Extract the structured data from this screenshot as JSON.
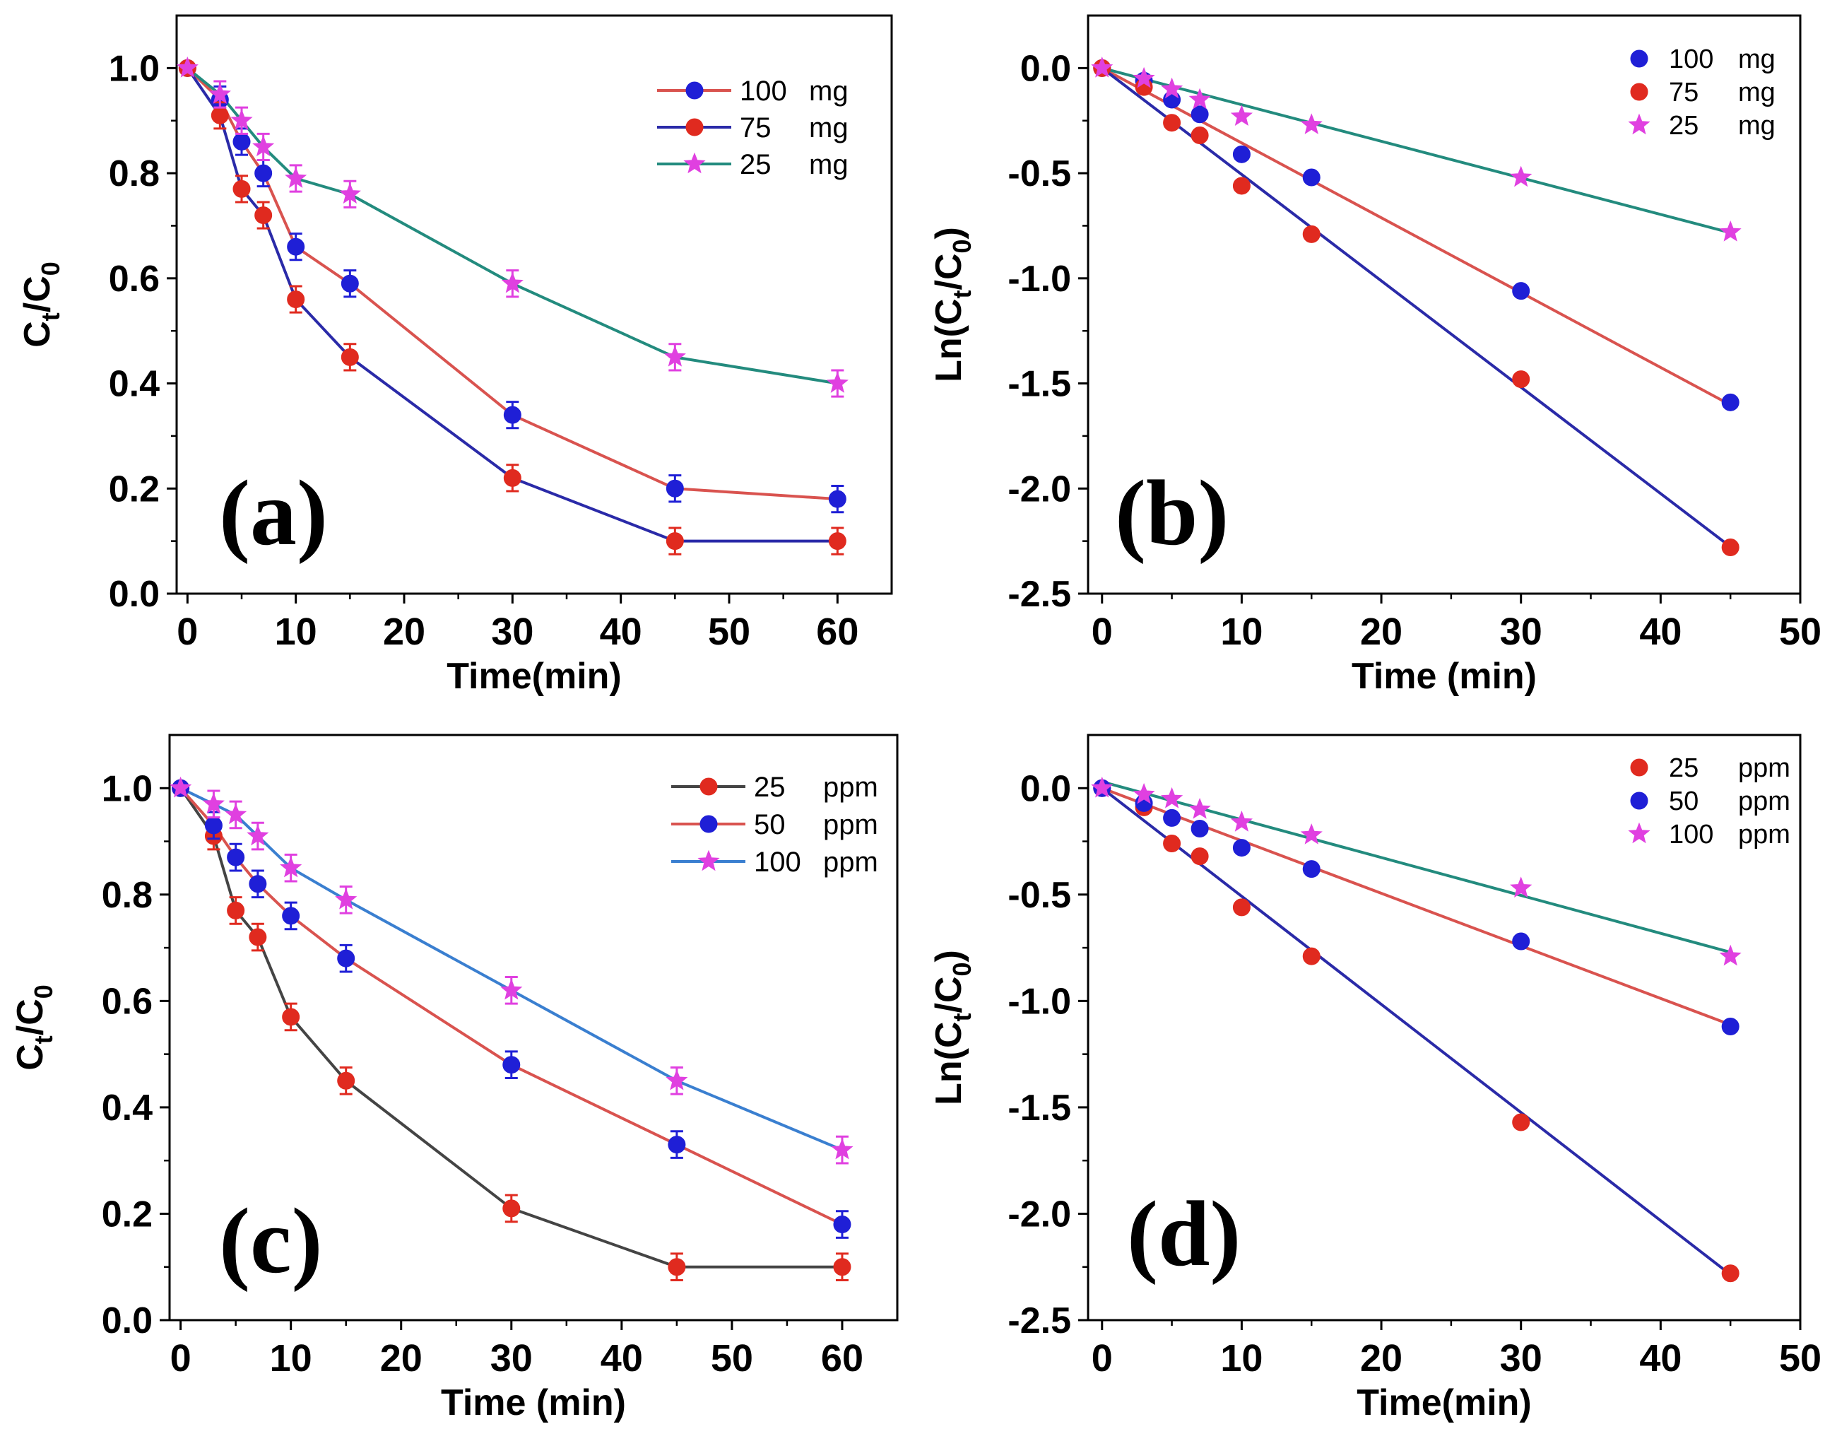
{
  "chart_data": [
    {
      "panel": "(a)",
      "type": "line",
      "xlabel": "Time(min)",
      "ylabel": "Ct/C0",
      "ylabel_main": "C",
      "ylabel_sub1": "t",
      "ylabel_mid": "/C",
      "ylabel_sub2": "0",
      "xlim": [
        -1,
        65
      ],
      "ylim": [
        0,
        1.1
      ],
      "xticks": [
        0,
        10,
        20,
        30,
        40,
        50,
        60
      ],
      "yticks": [
        0.0,
        0.2,
        0.4,
        0.6,
        0.8,
        1.0
      ],
      "ytick_labels": [
        "0.0",
        "0.2",
        "0.4",
        "0.6",
        "0.8",
        "1.0"
      ],
      "x": [
        0,
        3,
        5,
        7,
        10,
        15,
        30,
        45,
        60
      ],
      "legend": {
        "position": "top-right",
        "type": "line"
      },
      "series": [
        {
          "name": "100",
          "unit": "mg",
          "values": [
            1.0,
            0.94,
            0.86,
            0.8,
            0.66,
            0.59,
            0.34,
            0.2,
            0.18
          ],
          "line_color": "#d9534f",
          "marker_color": "#1f1fd6",
          "marker": "circle",
          "err": 0.025
        },
        {
          "name": "75",
          "unit": "mg",
          "values": [
            1.0,
            0.91,
            0.77,
            0.72,
            0.56,
            0.45,
            0.22,
            0.1,
            0.1
          ],
          "line_color": "#2a2aa8",
          "marker_color": "#e02a1f",
          "marker": "circle",
          "err": 0.025
        },
        {
          "name": "25",
          "unit": "mg",
          "values": [
            1.0,
            0.95,
            0.9,
            0.85,
            0.79,
            0.76,
            0.59,
            0.45,
            0.4
          ],
          "line_color": "#238b7e",
          "marker_color": "#e040e0",
          "marker": "star",
          "err": 0.025
        }
      ]
    },
    {
      "panel": "(b)",
      "type": "scatter",
      "xlabel": "Time (min)",
      "ylabel": "Ln(Ct/C0)",
      "ylabel_main": "Ln(C",
      "ylabel_sub1": "t",
      "ylabel_mid": "/C",
      "ylabel_sub2": "0",
      "ylabel_end": ")",
      "xlim": [
        -1,
        50
      ],
      "ylim": [
        -2.5,
        0.25
      ],
      "xticks": [
        0,
        10,
        20,
        30,
        40,
        50
      ],
      "yticks": [
        0.0,
        -0.5,
        -1.0,
        -1.5,
        -2.0,
        -2.5
      ],
      "ytick_labels": [
        "0.0",
        "-0.5",
        "-1.0",
        "-1.5",
        "-2.0",
        "-2.5"
      ],
      "x": [
        0,
        3,
        5,
        7,
        10,
        15,
        30,
        45
      ],
      "legend": {
        "position": "top-right",
        "type": "marker"
      },
      "series": [
        {
          "name": "100",
          "unit": "mg",
          "values": [
            0,
            -0.06,
            -0.15,
            -0.22,
            -0.41,
            -0.52,
            -1.06,
            -1.59
          ],
          "fit": [
            0,
            -0.0356
          ],
          "line_color": "#d9534f",
          "marker_color": "#1f1fd6",
          "marker": "circle"
        },
        {
          "name": "75",
          "unit": "mg",
          "values": [
            0,
            -0.09,
            -0.26,
            -0.32,
            -0.56,
            -0.79,
            -1.48,
            -2.28
          ],
          "fit": [
            0,
            -0.0506
          ],
          "line_color": "#2a2aa8",
          "marker_color": "#e02a1f",
          "marker": "circle"
        },
        {
          "name": "25",
          "unit": "mg",
          "values": [
            0,
            -0.05,
            -0.1,
            -0.15,
            -0.23,
            -0.27,
            -0.52,
            -0.78
          ],
          "fit": [
            0,
            -0.0174
          ],
          "line_color": "#238b7e",
          "marker_color": "#e040e0",
          "marker": "star"
        }
      ]
    },
    {
      "panel": "(c)",
      "type": "line",
      "xlabel": "Time (min)",
      "ylabel": "Ct/C0",
      "ylabel_main": "C",
      "ylabel_sub1": "t",
      "ylabel_mid": "/C",
      "ylabel_sub2": "0",
      "xlim": [
        -1,
        65
      ],
      "ylim": [
        0,
        1.1
      ],
      "xticks": [
        0,
        10,
        20,
        30,
        40,
        50,
        60
      ],
      "yticks": [
        0.0,
        0.2,
        0.4,
        0.6,
        0.8,
        1.0
      ],
      "ytick_labels": [
        "0.0",
        "0.2",
        "0.4",
        "0.6",
        "0.8",
        "1.0"
      ],
      "x": [
        0,
        3,
        5,
        7,
        10,
        15,
        30,
        45,
        60
      ],
      "legend": {
        "position": "top-right",
        "type": "line"
      },
      "series": [
        {
          "name": "25",
          "unit": "ppm",
          "values": [
            1.0,
            0.91,
            0.77,
            0.72,
            0.57,
            0.45,
            0.21,
            0.1,
            0.1
          ],
          "line_color": "#444444",
          "marker_color": "#e02a1f",
          "marker": "circle",
          "err": 0.025
        },
        {
          "name": "50",
          "unit": "ppm",
          "values": [
            1.0,
            0.93,
            0.87,
            0.82,
            0.76,
            0.68,
            0.48,
            0.33,
            0.18
          ],
          "line_color": "#d9534f",
          "marker_color": "#1f1fd6",
          "marker": "circle",
          "err": 0.025
        },
        {
          "name": "100",
          "unit": "ppm",
          "values": [
            1.0,
            0.97,
            0.95,
            0.91,
            0.85,
            0.79,
            0.62,
            0.45,
            0.32
          ],
          "line_color": "#3a7fd0",
          "marker_color": "#e040e0",
          "marker": "star",
          "err": 0.025
        }
      ]
    },
    {
      "panel": "(d)",
      "type": "scatter",
      "xlabel": "Time(min)",
      "ylabel": "Ln(Ct/C0)",
      "ylabel_main": "Ln(C",
      "ylabel_sub1": "t",
      "ylabel_mid": "/C",
      "ylabel_sub2": "0",
      "ylabel_end": ")",
      "xlim": [
        -1,
        50
      ],
      "ylim": [
        -2.5,
        0.25
      ],
      "xticks": [
        0,
        10,
        20,
        30,
        40,
        50
      ],
      "yticks": [
        0.0,
        -0.5,
        -1.0,
        -1.5,
        -2.0,
        -2.5
      ],
      "ytick_labels": [
        "0.0",
        "-0.5",
        "-1.0",
        "-1.5",
        "-2.0",
        "-2.5"
      ],
      "x": [
        0,
        3,
        5,
        7,
        10,
        15,
        30,
        45
      ],
      "legend": {
        "position": "top-right",
        "type": "marker"
      },
      "series": [
        {
          "name": "25",
          "unit": "ppm",
          "values": [
            0,
            -0.09,
            -0.26,
            -0.32,
            -0.56,
            -0.79,
            -1.57,
            -2.28
          ],
          "fit": [
            0,
            -0.0508
          ],
          "line_color": "#2a2aa8",
          "marker_color": "#e02a1f",
          "marker": "circle"
        },
        {
          "name": "50",
          "unit": "ppm",
          "values": [
            0,
            -0.07,
            -0.14,
            -0.19,
            -0.28,
            -0.38,
            -0.72,
            -1.12
          ],
          "fit": [
            0,
            -0.0247
          ],
          "line_color": "#d9534f",
          "marker_color": "#1f1fd6",
          "marker": "circle"
        },
        {
          "name": "100",
          "unit": "ppm",
          "values": [
            0,
            -0.03,
            -0.05,
            -0.1,
            -0.16,
            -0.22,
            -0.47,
            -0.79
          ],
          "fit": [
            0.03,
            -0.0178
          ],
          "line_color": "#238b7e",
          "marker_color": "#e040e0",
          "marker": "star"
        }
      ]
    }
  ]
}
